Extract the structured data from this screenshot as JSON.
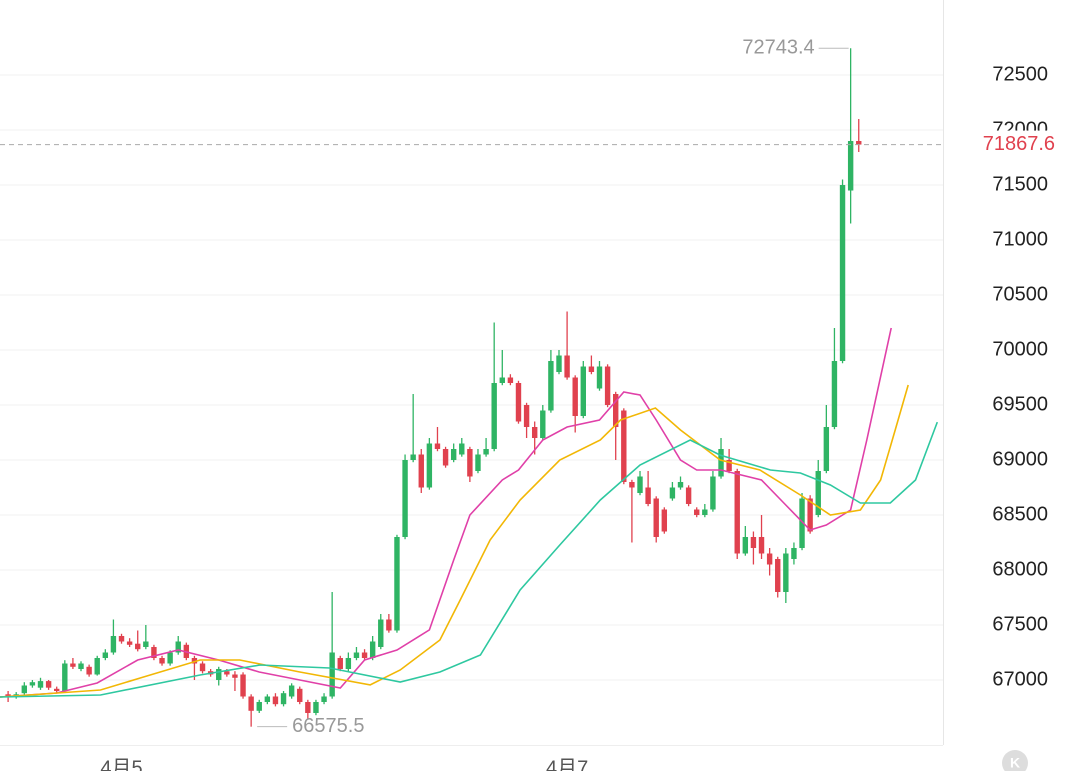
{
  "chart_data": {
    "type": "candlestick",
    "categories": [
      null,
      null,
      null,
      null,
      null,
      null,
      null,
      null,
      null,
      null,
      null,
      null,
      null,
      null,
      "4月5",
      null,
      null,
      null,
      null,
      null,
      null,
      null,
      null,
      null,
      null,
      null,
      null,
      null,
      null,
      null,
      null,
      null,
      null,
      null,
      null,
      null,
      null,
      null,
      null,
      null,
      null,
      null,
      null,
      null,
      null,
      null,
      null,
      null,
      null,
      null,
      null,
      null,
      null,
      null,
      null,
      null,
      null,
      null,
      null,
      null,
      null,
      null,
      null,
      null,
      null,
      null,
      null,
      null,
      null,
      "4月7",
      null,
      null,
      null,
      null,
      null,
      null,
      null,
      null,
      null,
      null,
      null,
      null,
      null,
      null,
      null,
      null,
      null,
      null,
      null,
      null,
      null,
      null,
      null,
      null,
      null,
      null,
      null,
      null,
      null,
      null,
      null,
      null,
      null,
      null,
      null,
      null
    ],
    "open": [
      66870,
      66850,
      66880,
      66950,
      66930,
      66990,
      66920,
      66900,
      67150,
      67100,
      67120,
      67050,
      67200,
      67250,
      67400,
      67350,
      67330,
      67300,
      67300,
      67200,
      67150,
      67250,
      67320,
      67200,
      67150,
      67080,
      67000,
      67080,
      67050,
      67050,
      66850,
      66720,
      66800,
      66850,
      66780,
      66850,
      66920,
      66800,
      66700,
      66800,
      66850,
      67200,
      67100,
      67200,
      67250,
      67200,
      67300,
      67550,
      67450,
      68300,
      69000,
      69050,
      68750,
      69150,
      69100,
      69000,
      69050,
      69100,
      68900,
      69050,
      69100,
      69700,
      69750,
      69700,
      69500,
      69300,
      69200,
      69450,
      69800,
      69950,
      69750,
      69400,
      69850,
      69650,
      69850,
      69600,
      69450,
      68800,
      68700,
      68750,
      68650,
      68550,
      68650,
      68750,
      68750,
      68550,
      68500,
      68550,
      68850,
      69000,
      68900,
      68150,
      68300,
      68300,
      68150,
      68100,
      67800,
      68100,
      68200,
      68650,
      68500,
      68900,
      69300,
      69900,
      71450,
      71900
    ],
    "high": [
      66900,
      66890,
      66980,
      67000,
      67020,
      67000,
      66940,
      67180,
      67200,
      67170,
      67140,
      67220,
      67280,
      67550,
      67420,
      67380,
      67450,
      67500,
      67320,
      67220,
      67270,
      67400,
      67340,
      67220,
      67170,
      67100,
      67120,
      67100,
      67080,
      67070,
      66870,
      66820,
      66870,
      66880,
      66900,
      66970,
      66940,
      66820,
      66820,
      66880,
      67800,
      67220,
      67250,
      67300,
      67280,
      67400,
      67600,
      67600,
      68320,
      69050,
      69600,
      69100,
      69200,
      69300,
      69120,
      69150,
      69200,
      69120,
      69100,
      69200,
      70250,
      70000,
      69780,
      69720,
      69520,
      69350,
      69500,
      70000,
      70000,
      70350,
      69770,
      69900,
      69950,
      69900,
      69870,
      69620,
      69470,
      68820,
      68900,
      68900,
      68670,
      68570,
      68800,
      68850,
      68770,
      68570,
      68600,
      68900,
      69200,
      69100,
      68920,
      68400,
      68350,
      68500,
      68200,
      68120,
      68200,
      68250,
      68700,
      68680,
      69000,
      69500,
      70200,
      71550,
      72743.4,
      72100
    ],
    "low": [
      66800,
      66830,
      66860,
      66930,
      66910,
      66910,
      66880,
      66890,
      67100,
      67080,
      67030,
      67040,
      67180,
      67230,
      67330,
      67300,
      67260,
      67280,
      67180,
      67130,
      67130,
      67230,
      67180,
      67000,
      67060,
      67030,
      66950,
      67030,
      66900,
      66830,
      66575.5,
      66700,
      66780,
      66760,
      66760,
      66830,
      66780,
      66650,
      66680,
      66780,
      66830,
      67080,
      67080,
      67180,
      67180,
      67180,
      67280,
      67430,
      67430,
      68280,
      68980,
      68700,
      68730,
      69080,
      68930,
      68980,
      69030,
      68800,
      68880,
      69030,
      69080,
      69680,
      69680,
      69330,
      69200,
      69050,
      69180,
      69430,
      69780,
      69730,
      69250,
      69380,
      69780,
      69630,
      69480,
      69000,
      68780,
      68250,
      68680,
      68580,
      68250,
      68330,
      68630,
      68730,
      68580,
      68480,
      68480,
      68530,
      68830,
      68880,
      68100,
      68130,
      68050,
      68100,
      67950,
      67750,
      67700,
      68050,
      68180,
      68330,
      68480,
      68880,
      69280,
      69880,
      71150,
      71800
    ],
    "close": [
      66850,
      66870,
      66950,
      66980,
      66990,
      66930,
      66900,
      67150,
      67120,
      67150,
      67050,
      67200,
      67250,
      67400,
      67350,
      67320,
      67280,
      67350,
      67200,
      67150,
      67250,
      67350,
      67200,
      67150,
      67080,
      67050,
      67100,
      67050,
      67020,
      66850,
      66720,
      66800,
      66850,
      66780,
      66880,
      66950,
      66800,
      66700,
      66800,
      66850,
      67250,
      67100,
      67200,
      67250,
      67200,
      67350,
      67550,
      67450,
      68300,
      69000,
      69050,
      68750,
      69150,
      69100,
      68950,
      69100,
      69150,
      68850,
      69050,
      69100,
      69700,
      69750,
      69700,
      69350,
      69300,
      69200,
      69450,
      69900,
      69950,
      69750,
      69400,
      69850,
      69800,
      69850,
      69500,
      69300,
      68800,
      68750,
      68850,
      68600,
      68300,
      68350,
      68750,
      68800,
      68600,
      68500,
      68550,
      68850,
      69100,
      68900,
      68150,
      68300,
      68200,
      68150,
      68050,
      67800,
      68150,
      68200,
      68650,
      68350,
      68900,
      69300,
      69900,
      71500,
      71900,
      71867.6
    ],
    "up_color": "#2fb464",
    "down_color": "#e0414e",
    "series": [
      {
        "color": "#e040a8",
        "x": [
          -1,
          6,
          11,
          16,
          21,
          26,
          31,
          36,
          41,
          44,
          48,
          52,
          55,
          57,
          61,
          63,
          66,
          69,
          73,
          76,
          78,
          80,
          83,
          85,
          88,
          93,
          96,
          99,
          101,
          104,
          106,
          109
        ],
        "values": [
          66845,
          66882,
          66973,
          67182,
          67273,
          67182,
          67073,
          67000,
          66927,
          67182,
          67273,
          67455,
          68091,
          68500,
          68818,
          68909,
          69182,
          69300,
          69364,
          69618,
          69591,
          69364,
          69000,
          68909,
          68909,
          68818,
          68591,
          68364,
          68409,
          68545,
          69182,
          70200
        ]
      },
      {
        "color": "#f2b705",
        "x": [
          -1,
          11.4,
          16.3,
          23.7,
          28.6,
          36,
          44.7,
          48.4,
          53.3,
          55.8,
          59.5,
          63.2,
          68.1,
          73.1,
          75.6,
          79.9,
          83,
          87.9,
          92.8,
          97.8,
          101.5,
          105.2,
          107.7,
          109.5,
          111.1
        ],
        "values": [
          66845,
          66909,
          67018,
          67182,
          67182,
          67073,
          66955,
          67091,
          67364,
          67727,
          68273,
          68636,
          69000,
          69182,
          69364,
          69473,
          69273,
          69000,
          68909,
          68682,
          68500,
          68545,
          68818,
          69273,
          69682
        ]
      },
      {
        "color": "#2ec8a0",
        "x": [
          -1,
          11.4,
          23.7,
          31.1,
          39.7,
          48.4,
          53.3,
          58.3,
          63.2,
          68.1,
          73.1,
          78,
          84.2,
          87.9,
          94.1,
          97.8,
          101.5,
          105.2,
          108.9,
          112,
          114.7
        ],
        "values": [
          66845,
          66864,
          67045,
          67136,
          67109,
          66982,
          67073,
          67227,
          67818,
          68227,
          68636,
          68955,
          69182,
          69045,
          68909,
          68882,
          68773,
          68609,
          68609,
          68818,
          69345
        ]
      }
    ],
    "xlim": [
      -1,
      115.4
    ],
    "ylim": [
      66409,
      73182
    ],
    "yticks": [
      67000,
      67500,
      68000,
      68500,
      69000,
      69500,
      70000,
      70500,
      71000,
      71500,
      72000,
      72500
    ],
    "grid": true
  }
}
